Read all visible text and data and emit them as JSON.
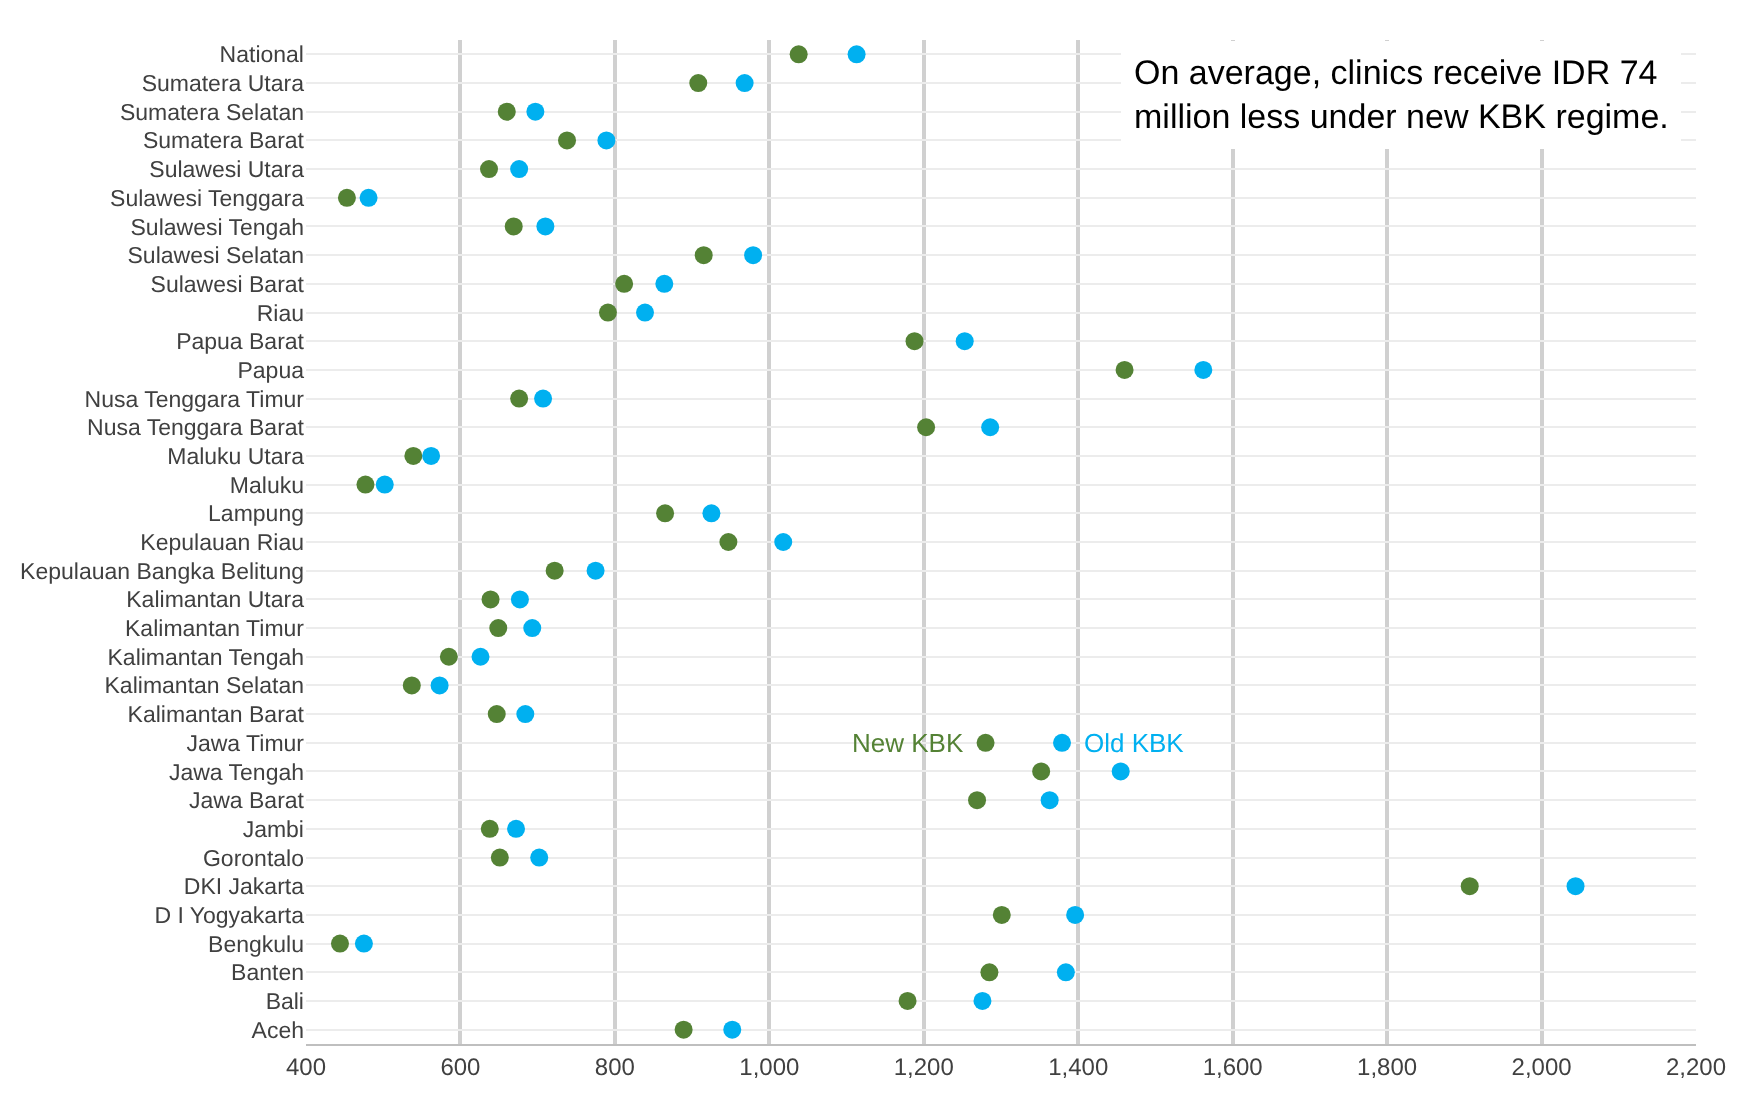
{
  "chart_data": {
    "type": "scatter",
    "orientation": "horizontal",
    "title": "On average, clinics receive IDR 74 million less under new KBK regime.",
    "categories": [
      "National",
      "Sumatera Utara",
      "Sumatera Selatan",
      "Sumatera Barat",
      "Sulawesi Utara",
      "Sulawesi Tenggara",
      "Sulawesi Tengah",
      "Sulawesi Selatan",
      "Sulawesi Barat",
      "Riau",
      "Papua Barat",
      "Papua",
      "Nusa Tenggara Timur",
      "Nusa Tenggara Barat",
      "Maluku Utara",
      "Maluku",
      "Lampung",
      "Kepulauan Riau",
      "Kepulauan Bangka Belitung",
      "Kalimantan Utara",
      "Kalimantan Timur",
      "Kalimantan Tengah",
      "Kalimantan Selatan",
      "Kalimantan Barat",
      "Jawa Timur",
      "Jawa Tengah",
      "Jawa Barat",
      "Jambi",
      "Gorontalo",
      "DKI Jakarta",
      "D I Yogyakarta",
      "Bengkulu",
      "Banten",
      "Bali",
      "Aceh"
    ],
    "series": [
      {
        "name": "New KBK",
        "color": "#548235",
        "values": [
          1038,
          908,
          660,
          738,
          637,
          453,
          669,
          915,
          812,
          791,
          1188,
          1460,
          676,
          1203,
          539,
          477,
          865,
          947,
          722,
          639,
          649,
          585,
          537,
          647,
          1280,
          1352,
          1269,
          638,
          651,
          1907,
          1301,
          444,
          1285,
          1179,
          889
        ]
      },
      {
        "name": "Old KBK",
        "color": "#00b0f0",
        "values": [
          1113,
          968,
          697,
          789,
          676,
          481,
          710,
          979,
          864,
          839,
          1253,
          1562,
          707,
          1286,
          562,
          502,
          925,
          1018,
          775,
          677,
          693,
          626,
          573,
          684,
          1379,
          1455,
          1363,
          672,
          702,
          2044,
          1396,
          475,
          1384,
          1276,
          952
        ]
      }
    ],
    "xlim": [
      400,
      2200
    ],
    "xticks": [
      {
        "value": 400,
        "label": "400"
      },
      {
        "value": 600,
        "label": "600"
      },
      {
        "value": 800,
        "label": "800"
      },
      {
        "value": 1000,
        "label": "1,000"
      },
      {
        "value": 1200,
        "label": "1,200"
      },
      {
        "value": 1400,
        "label": "1,400"
      },
      {
        "value": 1600,
        "label": "1,600"
      },
      {
        "value": 1800,
        "label": "1,800"
      },
      {
        "value": 2000,
        "label": "2,000"
      },
      {
        "value": 2200,
        "label": "2,200"
      }
    ],
    "grid": true,
    "legend": false,
    "marker": "circle"
  }
}
